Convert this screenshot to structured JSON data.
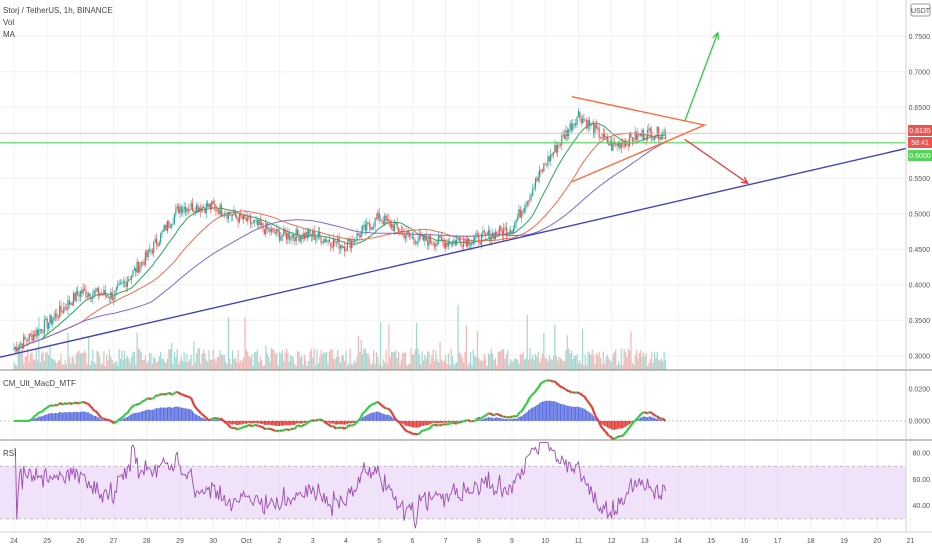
{
  "header": {
    "title": "Storj / TetherUS, 1h, BINANCE",
    "vol_label": "Vol",
    "ma_label": "MA",
    "macd_label": "CM_Ult_MacD_MTF",
    "rsi_label": "RSI"
  },
  "price_axis": {
    "currency": "USDT",
    "ticks": [
      "0.7500",
      "0.7000",
      "0.6500",
      "0.6000",
      "0.5500",
      "0.5000",
      "0.4500",
      "0.4000",
      "0.3500",
      "0.3000"
    ],
    "price_badge": "0.6135",
    "countdown_badge": "58:41",
    "green_badge": "0.6000"
  },
  "macd_axis": {
    "ticks": [
      "0.0200",
      "0.0000"
    ]
  },
  "rsi_axis": {
    "ticks": [
      "80.00",
      "60.00",
      "40.00"
    ]
  },
  "time_axis": {
    "labels": [
      "24",
      "25",
      "26",
      "27",
      "28",
      "29",
      "30",
      "Oct",
      "2",
      "3",
      "4",
      "5",
      "6",
      "7",
      "8",
      "9",
      "10",
      "11",
      "12",
      "13",
      "14",
      "15",
      "16",
      "17",
      "18",
      "19",
      "20",
      "21"
    ]
  },
  "colors": {
    "up": "#26a69a",
    "down": "#ef5350",
    "ma_fast": "#26a65b",
    "ma_mid": "#ef6c50",
    "ma_slow": "#7b68d6",
    "trendline": "#3f3fbf",
    "support": "#57d35a",
    "resistance": "#ef5350",
    "arrow_up": "#2ecc40",
    "arrow_down": "#e53935",
    "triangle": "#ff6a3d",
    "rsi_band": "#e8d5f7",
    "rsi_line": "#9c4db0"
  },
  "chart_data": [
    {
      "type": "candlestick",
      "title": "Storj / TetherUS, 1h, BINANCE",
      "xlabel": "",
      "ylabel": "",
      "x_range": [
        "24",
        "21"
      ],
      "ylim": [
        0.28,
        0.78
      ],
      "anchor_closes": [
        {
          "x": "24",
          "close": 0.31
        },
        {
          "x": "25",
          "close": 0.345
        },
        {
          "x": "26",
          "close": 0.39
        },
        {
          "x": "27",
          "close": 0.385
        },
        {
          "x": "28",
          "close": 0.44
        },
        {
          "x": "29",
          "close": 0.51
        },
        {
          "x": "30",
          "close": 0.51
        },
        {
          "x": "Oct",
          "close": 0.49
        },
        {
          "x": "2",
          "close": 0.47
        },
        {
          "x": "3",
          "close": 0.47
        },
        {
          "x": "4",
          "close": 0.455
        },
        {
          "x": "5",
          "close": 0.495
        },
        {
          "x": "6",
          "close": 0.465
        },
        {
          "x": "7",
          "close": 0.46
        },
        {
          "x": "8",
          "close": 0.465
        },
        {
          "x": "9",
          "close": 0.48
        },
        {
          "x": "10",
          "close": 0.57
        },
        {
          "x": "11",
          "close": 0.64
        },
        {
          "x": "12",
          "close": 0.595
        },
        {
          "x": "13",
          "close": 0.6135
        }
      ],
      "current_price": 0.6135,
      "horizontal_levels": [
        0.6
      ],
      "series": [
        {
          "name": "MA",
          "note": "moving averages (three lengths)"
        }
      ]
    },
    {
      "type": "bar",
      "title": "Vol",
      "values_relative": true
    },
    {
      "type": "histogram",
      "title": "CM_Ult_MacD_MTF",
      "ylim": [
        -0.012,
        0.032
      ],
      "ticks": [
        0.02,
        0.0
      ]
    },
    {
      "type": "line",
      "title": "RSI",
      "ylim": [
        20,
        90
      ],
      "band": [
        30,
        70
      ],
      "ticks": [
        80,
        60,
        40
      ]
    }
  ]
}
